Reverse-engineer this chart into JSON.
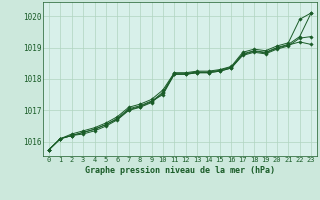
{
  "title": "Graphe pression niveau de la mer (hPa)",
  "background_color": "#cce8dc",
  "plot_bg_color": "#d8f0ea",
  "grid_color": "#b0d4c0",
  "line_color": "#1a5c28",
  "marker_color": "#1a5c28",
  "xlim": [
    -0.5,
    23.5
  ],
  "ylim": [
    1015.55,
    1020.45
  ],
  "yticks": [
    1016,
    1017,
    1018,
    1019,
    1020
  ],
  "xticks": [
    0,
    1,
    2,
    3,
    4,
    5,
    6,
    7,
    8,
    9,
    10,
    11,
    12,
    13,
    14,
    15,
    16,
    17,
    18,
    19,
    20,
    21,
    22,
    23
  ],
  "series": [
    [
      1015.75,
      1016.1,
      1016.2,
      1016.3,
      1016.4,
      1016.55,
      1016.75,
      1017.05,
      1017.15,
      1017.3,
      1017.5,
      1018.15,
      1018.15,
      1018.2,
      1018.2,
      1018.25,
      1018.35,
      1018.8,
      1018.9,
      1018.85,
      1019.0,
      1019.1,
      1019.35,
      1020.1
    ],
    [
      1015.75,
      1016.1,
      1016.25,
      1016.35,
      1016.45,
      1016.6,
      1016.8,
      1017.1,
      1017.2,
      1017.35,
      1017.65,
      1018.2,
      1018.2,
      1018.25,
      1018.25,
      1018.3,
      1018.4,
      1018.85,
      1018.95,
      1018.9,
      1019.05,
      1019.15,
      1019.9,
      1020.1
    ],
    [
      1015.75,
      1016.1,
      1016.2,
      1016.25,
      1016.35,
      1016.5,
      1016.7,
      1017.0,
      1017.1,
      1017.25,
      1017.55,
      1018.15,
      1018.15,
      1018.2,
      1018.2,
      1018.25,
      1018.35,
      1018.75,
      1018.85,
      1018.8,
      1018.95,
      1019.05,
      1019.3,
      1019.35
    ],
    [
      1015.75,
      1016.1,
      1016.2,
      1016.3,
      1016.4,
      1016.55,
      1016.72,
      1017.02,
      1017.12,
      1017.28,
      1017.58,
      1018.18,
      1018.18,
      1018.22,
      1018.22,
      1018.28,
      1018.38,
      1018.78,
      1018.88,
      1018.83,
      1018.98,
      1019.08,
      1019.18,
      1019.1
    ]
  ]
}
